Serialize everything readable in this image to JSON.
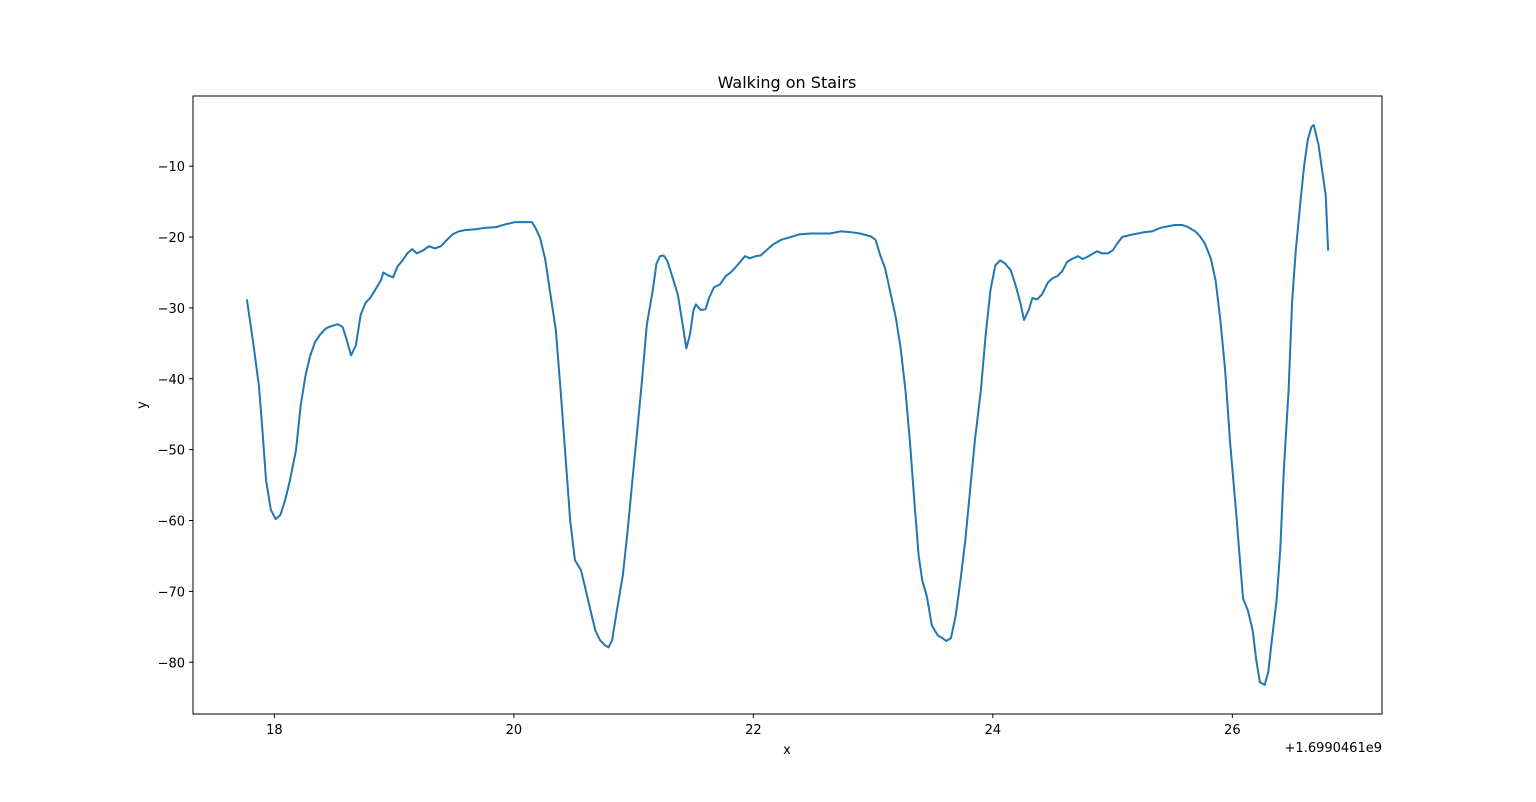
{
  "chart_data": {
    "type": "line",
    "title": "Walking on Stairs",
    "x_label": "x",
    "y_label": "y",
    "x_offset_label": "+1.6990461e9",
    "xlim": [
      17.32,
      27.25
    ],
    "ylim": [
      -87.3,
      -0.1
    ],
    "xticks": [
      18,
      20,
      22,
      24,
      26
    ],
    "yticks": [
      {
        "value": -80,
        "label": "−80"
      },
      {
        "value": -70,
        "label": "−70"
      },
      {
        "value": -60,
        "label": "−60"
      },
      {
        "value": -50,
        "label": "−50"
      },
      {
        "value": -40,
        "label": "−40"
      },
      {
        "value": -30,
        "label": "−30"
      },
      {
        "value": -20,
        "label": "−20"
      },
      {
        "value": -10,
        "label": "−10"
      }
    ],
    "grid": false,
    "series": [
      {
        "color": "#1f77b4",
        "x": [
          17.77,
          17.82,
          17.87,
          17.9,
          17.93,
          17.97,
          18.01,
          18.05,
          18.09,
          18.13,
          18.18,
          18.22,
          18.26,
          18.3,
          18.34,
          18.38,
          18.43,
          18.47,
          18.53,
          18.57,
          18.6,
          18.64,
          18.68,
          18.72,
          18.76,
          18.8,
          18.84,
          18.89,
          18.91,
          18.95,
          18.99,
          19.03,
          19.07,
          19.11,
          19.15,
          19.19,
          19.24,
          19.29,
          19.34,
          19.39,
          19.44,
          19.49,
          19.54,
          19.6,
          19.68,
          19.76,
          19.85,
          19.93,
          20.01,
          20.1,
          20.15,
          20.18,
          20.22,
          20.26,
          20.3,
          20.35,
          20.39,
          20.43,
          20.47,
          20.51,
          20.56,
          20.6,
          20.64,
          20.68,
          20.72,
          20.76,
          20.79,
          20.82,
          20.86,
          20.91,
          20.95,
          20.99,
          21.03,
          21.07,
          21.11,
          21.16,
          21.19,
          21.22,
          21.25,
          21.28,
          21.32,
          21.37,
          21.41,
          21.44,
          21.47,
          21.5,
          21.52,
          21.56,
          21.6,
          21.63,
          21.67,
          21.72,
          21.77,
          21.81,
          21.85,
          21.89,
          21.93,
          21.97,
          22.02,
          22.06,
          22.1,
          22.16,
          22.23,
          22.31,
          22.39,
          22.48,
          22.56,
          22.64,
          22.73,
          22.81,
          22.89,
          22.98,
          23.02,
          23.06,
          23.1,
          23.14,
          23.19,
          23.23,
          23.27,
          23.31,
          23.35,
          23.38,
          23.41,
          23.45,
          23.49,
          23.54,
          23.58,
          23.61,
          23.65,
          23.69,
          23.73,
          23.77,
          23.81,
          23.85,
          23.9,
          23.94,
          23.98,
          24.02,
          24.06,
          24.1,
          24.15,
          24.19,
          24.23,
          24.26,
          24.3,
          24.33,
          24.37,
          24.41,
          24.46,
          24.5,
          24.54,
          24.58,
          24.62,
          24.66,
          24.71,
          24.75,
          24.79,
          24.83,
          24.87,
          24.91,
          24.96,
          25.0,
          25.04,
          25.08,
          25.15,
          25.21,
          25.27,
          25.33,
          25.4,
          25.46,
          25.52,
          25.58,
          25.63,
          25.69,
          25.73,
          25.77,
          25.82,
          25.86,
          25.9,
          25.94,
          25.98,
          26.03,
          26.07,
          26.09,
          26.13,
          26.17,
          26.2,
          26.23,
          26.27,
          26.3,
          26.33,
          26.37,
          26.4,
          26.43,
          26.47,
          26.5,
          26.53,
          26.57,
          26.6,
          26.63,
          26.66,
          26.68,
          26.72,
          26.75,
          26.78,
          26.8
        ],
        "values": [
          -28.8,
          -34.6,
          -40.9,
          -47.3,
          -54.3,
          -58.5,
          -59.8,
          -59.2,
          -57.1,
          -54.3,
          -50.1,
          -43.7,
          -39.5,
          -36.7,
          -34.8,
          -33.8,
          -32.9,
          -32.6,
          -32.3,
          -32.7,
          -34.3,
          -36.7,
          -35.3,
          -31.0,
          -29.3,
          -28.6,
          -27.5,
          -26.1,
          -25.0,
          -25.4,
          -25.7,
          -24.1,
          -23.3,
          -22.3,
          -21.7,
          -22.3,
          -21.9,
          -21.3,
          -21.6,
          -21.3,
          -20.4,
          -19.6,
          -19.2,
          -19.0,
          -18.9,
          -18.7,
          -18.6,
          -18.2,
          -17.9,
          -17.9,
          -17.9,
          -18.7,
          -20.2,
          -23.0,
          -27.5,
          -33.1,
          -41.6,
          -50.8,
          -60.0,
          -65.6,
          -67.0,
          -69.8,
          -72.7,
          -75.5,
          -76.9,
          -77.6,
          -77.9,
          -76.9,
          -72.7,
          -67.7,
          -61.4,
          -54.3,
          -47.3,
          -40.2,
          -32.4,
          -27.5,
          -23.8,
          -22.7,
          -22.6,
          -23.3,
          -25.4,
          -28.2,
          -32.4,
          -35.7,
          -33.8,
          -30.3,
          -29.5,
          -30.3,
          -30.2,
          -28.6,
          -27.1,
          -26.7,
          -25.5,
          -25.0,
          -24.3,
          -23.5,
          -22.7,
          -23.0,
          -22.7,
          -22.6,
          -22.0,
          -21.1,
          -20.4,
          -20.0,
          -19.6,
          -19.5,
          -19.5,
          -19.5,
          -19.2,
          -19.3,
          -19.5,
          -19.9,
          -20.4,
          -22.6,
          -24.4,
          -27.5,
          -31.4,
          -35.7,
          -41.6,
          -49.4,
          -58.5,
          -64.9,
          -68.4,
          -70.8,
          -74.8,
          -76.2,
          -76.6,
          -77.0,
          -76.6,
          -73.4,
          -68.4,
          -62.8,
          -55.7,
          -48.7,
          -41.6,
          -33.8,
          -27.5,
          -24.0,
          -23.3,
          -23.7,
          -24.7,
          -26.8,
          -29.3,
          -31.7,
          -30.3,
          -28.6,
          -28.8,
          -28.1,
          -26.4,
          -25.8,
          -25.5,
          -24.8,
          -23.5,
          -23.1,
          -22.7,
          -23.1,
          -22.8,
          -22.4,
          -22.0,
          -22.3,
          -22.3,
          -21.9,
          -20.9,
          -20.0,
          -19.7,
          -19.5,
          -19.3,
          -19.2,
          -18.7,
          -18.5,
          -18.3,
          -18.3,
          -18.6,
          -19.2,
          -19.9,
          -20.9,
          -23.0,
          -26.1,
          -31.7,
          -38.8,
          -48.7,
          -58.5,
          -67.0,
          -71.0,
          -72.7,
          -75.5,
          -79.7,
          -82.8,
          -83.2,
          -81.4,
          -76.9,
          -71.2,
          -64.2,
          -52.9,
          -41.6,
          -28.9,
          -21.9,
          -14.8,
          -9.9,
          -6.3,
          -4.5,
          -4.2,
          -7.0,
          -10.6,
          -14.1,
          -21.9
        ]
      }
    ]
  }
}
